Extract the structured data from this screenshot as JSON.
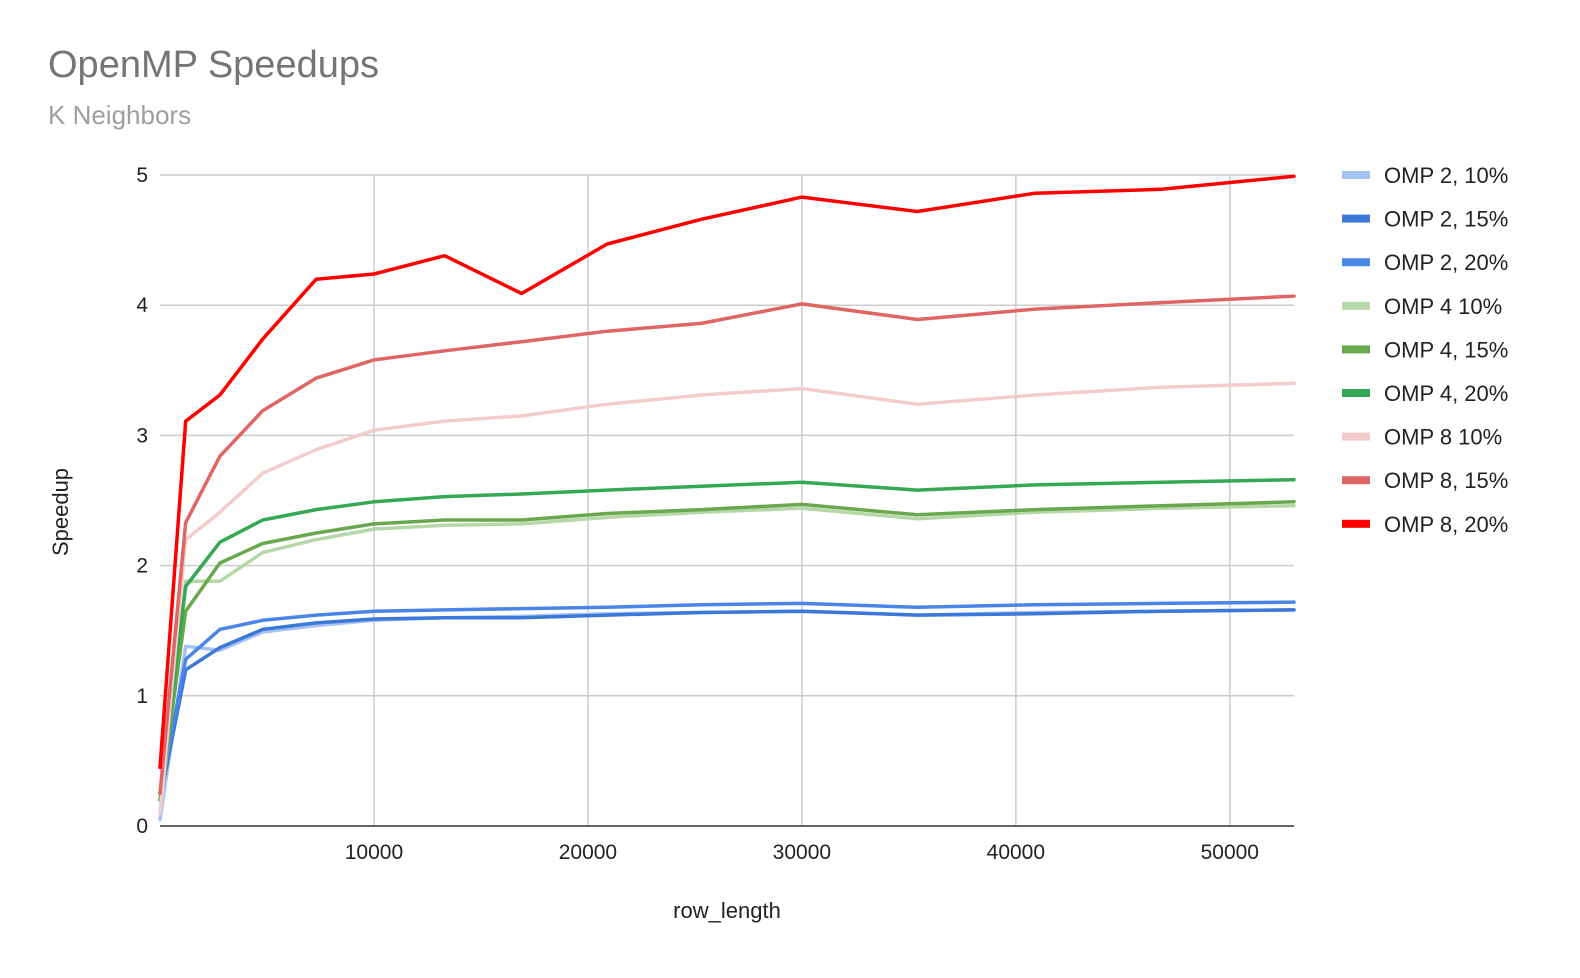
{
  "chart_data": {
    "type": "line",
    "title": "OpenMP Speedups",
    "subtitle": "K Neighbors",
    "xlabel": "row_length",
    "ylabel": "Speedup",
    "xlim": [
      0,
      53000
    ],
    "ylim": [
      0,
      5
    ],
    "xticks": [
      10000,
      20000,
      30000,
      40000,
      50000
    ],
    "yticks": [
      0,
      1,
      2,
      3,
      4,
      5
    ],
    "grid": true,
    "legend_position": "right",
    "x": [
      0,
      1200,
      2800,
      4800,
      7300,
      10000,
      13300,
      16900,
      20900,
      25300,
      30000,
      35400,
      40900,
      46800,
      53000
    ],
    "series": [
      {
        "name": "OMP 2, 10%",
        "color": "#a4c2f4",
        "values": [
          0.05,
          1.38,
          1.35,
          1.49,
          1.54,
          1.58,
          1.6,
          1.61,
          1.63,
          1.64,
          1.65,
          1.62,
          1.64,
          1.65,
          1.66
        ]
      },
      {
        "name": "OMP 2, 15%",
        "color": "#3c78d8",
        "values": [
          0.2,
          1.2,
          1.37,
          1.51,
          1.56,
          1.59,
          1.6,
          1.6,
          1.62,
          1.64,
          1.65,
          1.62,
          1.63,
          1.65,
          1.66
        ]
      },
      {
        "name": "OMP 2, 20%",
        "color": "#4a86e8",
        "values": [
          0.25,
          1.28,
          1.51,
          1.58,
          1.62,
          1.65,
          1.66,
          1.67,
          1.68,
          1.7,
          1.71,
          1.68,
          1.7,
          1.71,
          1.72
        ]
      },
      {
        "name": "OMP 4 10%",
        "color": "#b6d7a8",
        "values": [
          0.1,
          1.88,
          1.88,
          2.1,
          2.2,
          2.28,
          2.31,
          2.32,
          2.37,
          2.41,
          2.44,
          2.36,
          2.41,
          2.44,
          2.46
        ]
      },
      {
        "name": "OMP 4, 15%",
        "color": "#6aa84f",
        "values": [
          0.2,
          1.65,
          2.02,
          2.17,
          2.25,
          2.32,
          2.35,
          2.35,
          2.4,
          2.43,
          2.47,
          2.39,
          2.43,
          2.46,
          2.49
        ]
      },
      {
        "name": "OMP 4, 20%",
        "color": "#34a853",
        "values": [
          0.25,
          1.84,
          2.18,
          2.35,
          2.43,
          2.49,
          2.53,
          2.55,
          2.58,
          2.61,
          2.64,
          2.58,
          2.62,
          2.64,
          2.66
        ]
      },
      {
        "name": "OMP 8 10%",
        "color": "#f4cccc",
        "values": [
          0.1,
          2.2,
          2.41,
          2.71,
          2.89,
          3.04,
          3.11,
          3.15,
          3.24,
          3.31,
          3.36,
          3.24,
          3.31,
          3.37,
          3.4
        ]
      },
      {
        "name": "OMP 8, 15%",
        "color": "#e06666",
        "values": [
          0.25,
          2.33,
          2.84,
          3.19,
          3.44,
          3.58,
          3.65,
          3.72,
          3.8,
          3.86,
          4.01,
          3.89,
          3.97,
          4.02,
          4.07
        ]
      },
      {
        "name": "OMP 8, 20%",
        "color": "#ff0000",
        "values": [
          0.45,
          3.11,
          3.31,
          3.74,
          4.2,
          4.24,
          4.38,
          4.09,
          4.47,
          4.66,
          4.83,
          4.72,
          4.86,
          4.89,
          4.99
        ]
      }
    ]
  }
}
